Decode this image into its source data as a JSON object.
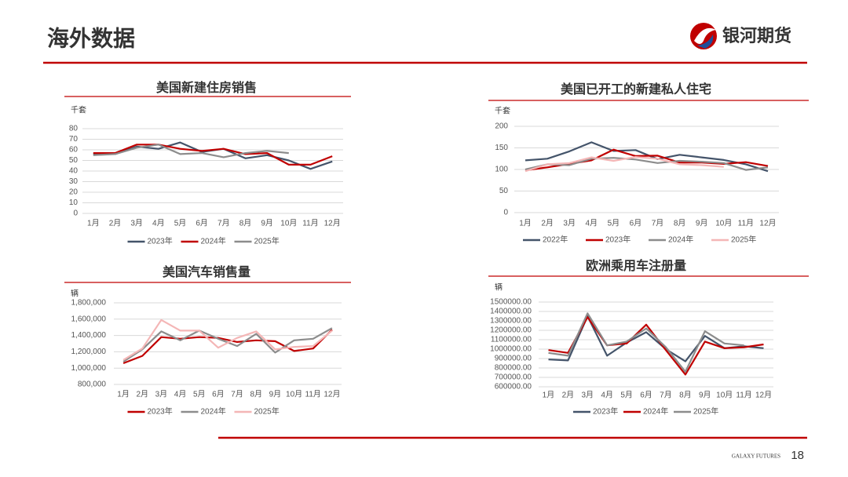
{
  "header": {
    "title": "海外数据",
    "logo": "银河期货"
  },
  "footer": {
    "brand": "GALAXY FUTURES",
    "page": 18
  },
  "chart_data": [
    {
      "type": "line",
      "title": "美国新建住房销售",
      "y_label": "千套",
      "categories": [
        "1月",
        "2月",
        "3月",
        "4月",
        "5月",
        "6月",
        "7月",
        "8月",
        "9月",
        "10月",
        "11月",
        "12月"
      ],
      "ylim": [
        0,
        80
      ],
      "yticks": [
        0,
        10,
        20,
        30,
        40,
        50,
        60,
        70,
        80
      ],
      "grid": true,
      "series": [
        {
          "name": "2023年",
          "color": "#44546a",
          "values": [
            56,
            56,
            63,
            61,
            67,
            58,
            61,
            52,
            55,
            50,
            42,
            49
          ]
        },
        {
          "name": "2024年",
          "color": "#c00000",
          "values": [
            57,
            57,
            65,
            65,
            61,
            59,
            61,
            56,
            57,
            46,
            46,
            54
          ]
        },
        {
          "name": "2025年",
          "color": "#8c8c8c",
          "values": [
            55,
            56,
            62,
            65,
            56,
            57,
            53,
            57,
            59,
            57,
            null,
            null
          ]
        }
      ]
    },
    {
      "type": "line",
      "title": "美国已开工的新建私人住宅",
      "y_label": "千套",
      "categories": [
        "1月",
        "2月",
        "3月",
        "4月",
        "5月",
        "6月",
        "7月",
        "8月",
        "9月",
        "10月",
        "11月",
        "12月"
      ],
      "ylim": [
        0,
        200
      ],
      "yticks": [
        0,
        50,
        100,
        150,
        200
      ],
      "grid": true,
      "series": [
        {
          "name": "2022年",
          "color": "#44546a",
          "values": [
            121,
            125,
            142,
            163,
            143,
            145,
            124,
            134,
            128,
            122,
            112,
            96
          ]
        },
        {
          "name": "2023年",
          "color": "#c00000",
          "values": [
            98,
            105,
            113,
            121,
            146,
            131,
            132,
            116,
            116,
            113,
            117,
            108
          ]
        },
        {
          "name": "2024年",
          "color": "#8c8c8c",
          "values": [
            100,
            112,
            110,
            125,
            127,
            123,
            115,
            120,
            118,
            115,
            99,
            105
          ]
        },
        {
          "name": "2025年",
          "color": "#f4b6b6",
          "values": [
            96,
            112,
            115,
            128,
            120,
            129,
            125,
            112,
            110,
            106,
            null,
            null
          ]
        }
      ]
    },
    {
      "type": "line",
      "title": "美国汽车销售量",
      "y_label": "辆",
      "categories": [
        "1月",
        "2月",
        "3月",
        "4月",
        "5月",
        "6月",
        "7月",
        "8月",
        "9月",
        "10月",
        "11月",
        "12月"
      ],
      "ylim": [
        800000,
        1800000
      ],
      "yticks": [
        {
          "value": 800000,
          "label": "800,000"
        },
        {
          "value": 1000000,
          "label": "1,000,000"
        },
        {
          "value": 1200000,
          "label": "1,200,000"
        },
        {
          "value": 1400000,
          "label": "1,400,000"
        },
        {
          "value": 1600000,
          "label": "1,600,000"
        },
        {
          "value": 1800000,
          "label": "1,800,000"
        }
      ],
      "grid": true,
      "series": [
        {
          "name": "2023年",
          "color": "#c00000",
          "values": [
            1060000,
            1150000,
            1380000,
            1360000,
            1380000,
            1370000,
            1320000,
            1340000,
            1330000,
            1210000,
            1240000,
            1470000
          ]
        },
        {
          "name": "2024年",
          "color": "#8c8c8c",
          "values": [
            1080000,
            1230000,
            1450000,
            1340000,
            1460000,
            1360000,
            1270000,
            1420000,
            1190000,
            1340000,
            1360000,
            1490000
          ]
        },
        {
          "name": "2025年",
          "color": "#f4b6b6",
          "values": [
            1100000,
            1240000,
            1590000,
            1460000,
            1460000,
            1250000,
            1370000,
            1450000,
            1230000,
            1260000,
            1270000,
            1460000
          ]
        }
      ]
    },
    {
      "type": "line",
      "title": "欧洲乘用车注册量",
      "y_label": "辆",
      "categories": [
        "1月",
        "2月",
        "3月",
        "4月",
        "5月",
        "6月",
        "7月",
        "8月",
        "9月",
        "10月",
        "11月",
        "12月"
      ],
      "ylim": [
        600000,
        1500000
      ],
      "yticks": [
        {
          "value": 600000,
          "label": "600000.00"
        },
        {
          "value": 700000,
          "label": "700000.00"
        },
        {
          "value": 800000,
          "label": "800000.00"
        },
        {
          "value": 900000,
          "label": "900000.00"
        },
        {
          "value": 1000000,
          "label": "1000000.00"
        },
        {
          "value": 1100000,
          "label": "1100000.00"
        },
        {
          "value": 1200000,
          "label": "1200000.00"
        },
        {
          "value": 1300000,
          "label": "1300000.00"
        },
        {
          "value": 1400000,
          "label": "1400000.00"
        },
        {
          "value": 1500000,
          "label": "1500000.00"
        }
      ],
      "grid": true,
      "series": [
        {
          "name": "2023年",
          "color": "#44546a",
          "values": [
            890000,
            880000,
            1350000,
            930000,
            1070000,
            1180000,
            1000000,
            870000,
            1140000,
            1010000,
            1030000,
            1010000
          ]
        },
        {
          "name": "2024年",
          "color": "#c00000",
          "values": [
            990000,
            960000,
            1340000,
            1040000,
            1060000,
            1260000,
            990000,
            730000,
            1080000,
            1010000,
            1020000,
            1050000
          ]
        },
        {
          "name": "2025年",
          "color": "#8c8c8c",
          "values": [
            960000,
            930000,
            1380000,
            1040000,
            1080000,
            1220000,
            1020000,
            760000,
            1190000,
            1060000,
            1040000,
            null
          ]
        }
      ]
    }
  ]
}
